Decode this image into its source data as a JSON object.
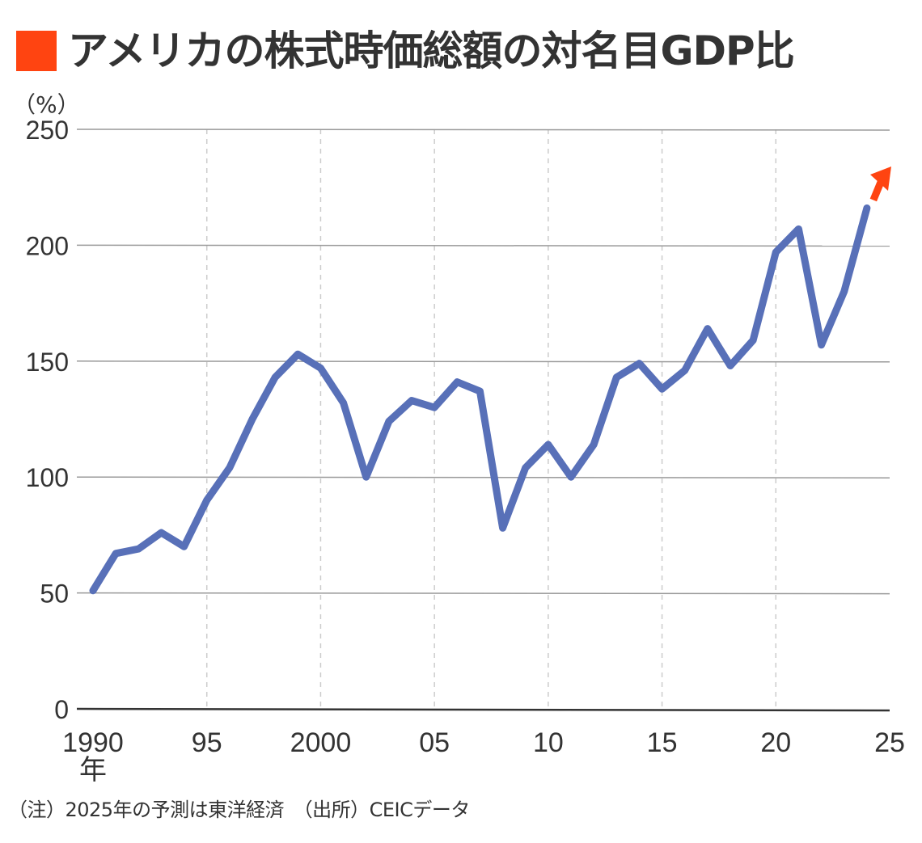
{
  "title": {
    "text": "アメリカの株式時価総額の対名目GDP比",
    "marker_color": "#FF4411"
  },
  "unit_label": "（%）",
  "note": "（注）2025年の予測は東洋経済　（出所）CEICデータ",
  "colors": {
    "line": "#5870B8",
    "arrow": "#FF4411",
    "grid": "#999999",
    "vgrid": "#CCCCCC",
    "axis": "#333333"
  },
  "chart_data": {
    "type": "line",
    "title": "アメリカの株式時価総額の対名目GDP比",
    "xlabel": "年",
    "ylabel": "（%）",
    "ylim": [
      0,
      250
    ],
    "xlim": [
      1990,
      2025
    ],
    "yticks": [
      0,
      50,
      100,
      150,
      200,
      250
    ],
    "xticks": [
      {
        "value": 1990,
        "label": "1990"
      },
      {
        "value": 1995,
        "label": "95"
      },
      {
        "value": 2000,
        "label": "2000"
      },
      {
        "value": 2005,
        "label": "05"
      },
      {
        "value": 2010,
        "label": "10"
      },
      {
        "value": 2015,
        "label": "15"
      },
      {
        "value": 2020,
        "label": "20"
      },
      {
        "value": 2025,
        "label": "25"
      }
    ],
    "x_unit_label": "年",
    "grid": {
      "horizontal": true,
      "vertical_dashed": true
    },
    "series": [
      {
        "name": "株式時価総額の対名目GDP比",
        "x": [
          1990,
          1991,
          1992,
          1993,
          1994,
          1995,
          1996,
          1997,
          1998,
          1999,
          2000,
          2001,
          2002,
          2003,
          2004,
          2005,
          2006,
          2007,
          2008,
          2009,
          2010,
          2011,
          2012,
          2013,
          2014,
          2015,
          2016,
          2017,
          2018,
          2019,
          2020,
          2021,
          2022,
          2023,
          2024
        ],
        "values": [
          51,
          67,
          69,
          76,
          70,
          90,
          104,
          125,
          143,
          153,
          147,
          132,
          100,
          124,
          133,
          130,
          141,
          137,
          78,
          104,
          114,
          100,
          114,
          143,
          149,
          138,
          146,
          164,
          148,
          159,
          197,
          207,
          157,
          180,
          216
        ]
      }
    ],
    "annotations": [
      {
        "type": "forecast-arrow",
        "from": {
          "x": 2024,
          "y": 216
        },
        "direction": "up-right",
        "meaning": "2025年の予測（上昇）"
      }
    ]
  }
}
